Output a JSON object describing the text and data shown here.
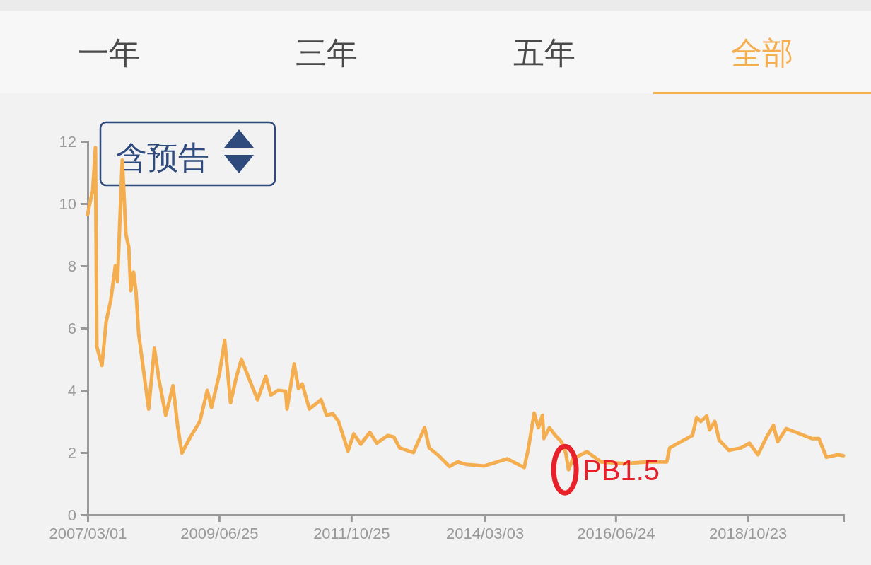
{
  "chart_data": {
    "type": "line",
    "color": "#f4ae4f",
    "x": [
      "2007-03-01",
      "2007-03-14",
      "2007-04-02",
      "2007-04-20",
      "2007-04-29",
      "2007-06-01",
      "2007-06-28",
      "2007-07-28",
      "2007-08-26",
      "2007-09-09",
      "2007-10-10",
      "2007-11-03",
      "2007-11-21",
      "2007-12-04",
      "2007-12-22",
      "2008-01-06",
      "2008-01-24",
      "2008-02-21",
      "2008-03-28",
      "2008-05-04",
      "2008-06-04",
      "2008-07-16",
      "2008-09-01",
      "2008-10-01",
      "2008-10-28",
      "2008-12-22",
      "2009-02-21",
      "2009-04-10",
      "2009-05-07",
      "2009-06-28",
      "2009-07-31",
      "2009-09-07",
      "2009-10-13",
      "2009-11-16",
      "2010-01-10",
      "2010-02-28",
      "2010-04-22",
      "2010-05-25",
      "2010-07-10",
      "2010-08-28",
      "2010-09-06",
      "2010-10-22",
      "2010-11-19",
      "2010-12-13",
      "2011-01-28",
      "2011-04-13",
      "2011-05-19",
      "2011-06-28",
      "2011-08-04",
      "2011-10-04",
      "2011-11-10",
      "2011-12-25",
      "2012-02-22",
      "2012-04-07",
      "2012-06-16",
      "2012-07-25",
      "2012-09-01",
      "2012-11-28",
      "2013-02-09",
      "2013-03-10",
      "2013-05-04",
      "2013-07-19",
      "2013-09-09",
      "2013-11-03",
      "2014-03-01",
      "2014-07-25",
      "2014-11-13",
      "2014-12-10",
      "2015-01-16",
      "2015-02-12",
      "2015-03-10",
      "2015-03-19",
      "2015-04-24",
      "2015-06-01",
      "2015-07-10",
      "2015-08-07",
      "2015-08-25",
      "2015-09-22",
      "2015-12-22",
      "2016-03-22",
      "2016-08-16",
      "2017-01-13",
      "2017-05-19",
      "2017-06-07",
      "2017-08-19",
      "2017-11-01",
      "2017-11-28",
      "2017-12-25",
      "2018-02-01",
      "2018-02-19",
      "2018-03-25",
      "2018-04-22",
      "2018-06-25",
      "2018-09-10",
      "2018-11-03",
      "2018-12-28",
      "2019-02-22",
      "2019-04-07",
      "2019-05-04",
      "2019-06-28",
      "2019-09-10",
      "2019-12-10",
      "2020-01-25",
      "2020-03-13",
      "2020-05-25",
      "2020-07-01"
    ],
    "values": [
      9.65,
      10.0,
      10.4,
      11.8,
      5.4,
      4.8,
      6.2,
      6.9,
      8.0,
      7.5,
      11.4,
      9.0,
      8.6,
      7.2,
      7.8,
      7.2,
      5.8,
      4.75,
      3.4,
      5.35,
      4.3,
      3.2,
      4.15,
      2.85,
      1.98,
      2.5,
      3.0,
      4.0,
      3.45,
      4.55,
      5.6,
      3.6,
      4.4,
      5.0,
      4.3,
      3.7,
      4.45,
      3.85,
      4.0,
      3.97,
      3.4,
      4.85,
      4.05,
      4.2,
      3.4,
      3.7,
      3.2,
      3.25,
      3.0,
      2.05,
      2.6,
      2.27,
      2.65,
      2.3,
      2.55,
      2.5,
      2.15,
      2.0,
      2.8,
      2.15,
      1.93,
      1.55,
      1.7,
      1.62,
      1.57,
      1.8,
      1.52,
      2.15,
      3.27,
      2.8,
      3.2,
      2.45,
      2.8,
      2.55,
      2.35,
      2.0,
      1.45,
      1.8,
      2.03,
      1.7,
      1.65,
      1.7,
      1.7,
      2.15,
      2.35,
      2.55,
      3.13,
      3.0,
      3.18,
      2.73,
      3.0,
      2.4,
      2.07,
      2.15,
      2.3,
      1.93,
      2.5,
      2.87,
      2.35,
      2.77,
      2.63,
      2.45,
      2.45,
      1.85,
      1.93,
      1.9
    ],
    "xlim": [
      "2007-03-01",
      "2020-07-01"
    ],
    "xticks": [
      {
        "value": "2007-03-01",
        "label": "2007/03/01"
      },
      {
        "value": "2009-06-25",
        "label": "2009/06/25"
      },
      {
        "value": "2011-10-25",
        "label": "2011/10/25"
      },
      {
        "value": "2014-03-03",
        "label": "2014/03/03"
      },
      {
        "value": "2016-06-24",
        "label": "2016/06/24"
      },
      {
        "value": "2018-10-23",
        "label": "2018/10/23"
      }
    ],
    "ylim": [
      0,
      12
    ],
    "yticks": [
      0,
      2,
      4,
      6,
      8,
      10,
      12
    ],
    "grid": false,
    "marker": "none",
    "line_style": "solid",
    "annotations": [
      "一年",
      "三年",
      "五年",
      "全部",
      "含预告",
      {
        "text": "PB1.5",
        "x": "2015-08-25",
        "y": 1.45
      }
    ]
  }
}
